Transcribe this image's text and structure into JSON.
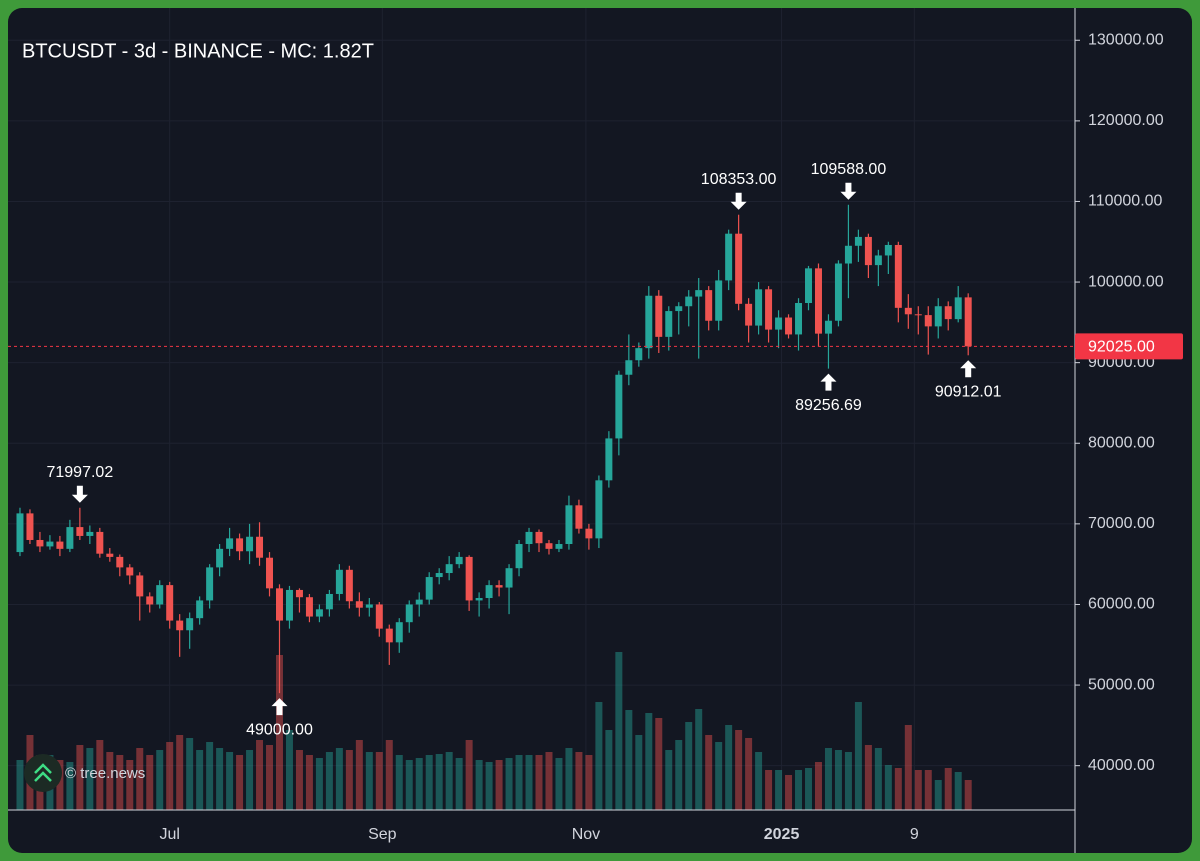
{
  "chart_data": {
    "type": "candlestick",
    "title": "BTCUSDT - 3d - BINANCE - MC: 1.82T",
    "watermark": "© tree.news",
    "up_color": "#26a69a",
    "down_color": "#ef5350",
    "open": [
      66500,
      71300,
      68000,
      67200,
      67800,
      66900,
      69600,
      68500,
      69000,
      66300,
      65900,
      64600,
      63600,
      61000,
      60000,
      62400,
      58000,
      56800,
      58300,
      60500,
      64600,
      66900,
      68200,
      66600,
      68400,
      65800,
      62000,
      58000,
      61800,
      60900,
      58500,
      59400,
      61300,
      64300,
      60400,
      59600,
      60000,
      57000,
      55300,
      57800,
      60000,
      60600,
      63400,
      63900,
      65000,
      65900,
      60500,
      60800,
      62400,
      62100,
      64500,
      67500,
      69000,
      67600,
      66900,
      67500,
      72300,
      69400,
      68200,
      75400,
      80600,
      88500,
      90300,
      91800,
      98300,
      93200,
      96400,
      97000,
      98200,
      99000,
      95200,
      100200,
      106000,
      97300,
      94600,
      99100,
      94100,
      95600,
      93500,
      97400,
      101700,
      93600,
      95200,
      102300,
      104500,
      105600,
      102100,
      103300,
      104600,
      96800,
      96000,
      95900,
      94500,
      97000,
      95400,
      98100
    ],
    "high": [
      72000,
      71800,
      69000,
      68600,
      68500,
      70500,
      71997.02,
      69800,
      69500,
      67000,
      66200,
      65000,
      64000,
      61500,
      63000,
      62800,
      58800,
      59000,
      61000,
      65000,
      67500,
      69500,
      68800,
      70000,
      70200,
      66500,
      62500,
      62300,
      62000,
      61300,
      60000,
      61800,
      65000,
      64800,
      61500,
      60800,
      60300,
      57500,
      58300,
      60500,
      61500,
      64000,
      64500,
      66000,
      66500,
      66100,
      61500,
      63000,
      63000,
      65000,
      68000,
      69500,
      69300,
      68000,
      68000,
      73500,
      73000,
      70000,
      76000,
      81500,
      89000,
      93500,
      92500,
      99500,
      99000,
      97000,
      97500,
      99000,
      100500,
      99500,
      101500,
      106500,
      108353,
      98000,
      100000,
      99500,
      96500,
      96000,
      98000,
      102000,
      102300,
      96000,
      102700,
      109588,
      106500,
      106000,
      104000,
      105000,
      105000,
      98500,
      97000,
      97000,
      98000,
      97600,
      99500,
      98600
    ],
    "low": [
      66000,
      67500,
      66500,
      66800,
      66000,
      66500,
      68000,
      67500,
      65800,
      65300,
      63500,
      62500,
      58000,
      59000,
      59500,
      57000,
      53500,
      54500,
      57500,
      59500,
      63500,
      66000,
      65500,
      65000,
      64800,
      61000,
      49000,
      57000,
      59000,
      57800,
      57800,
      58500,
      60500,
      59500,
      58500,
      58500,
      56000,
      52500,
      54000,
      56500,
      58500,
      60000,
      62500,
      63000,
      64500,
      59200,
      58500,
      59500,
      61000,
      58800,
      63500,
      66500,
      66500,
      66200,
      66500,
      66800,
      68800,
      66800,
      67000,
      74500,
      78500,
      87200,
      89500,
      90500,
      91200,
      91500,
      93500,
      94500,
      90500,
      94000,
      94000,
      99000,
      96500,
      92500,
      93500,
      92500,
      91800,
      93000,
      91500,
      96500,
      92000,
      89256.69,
      94500,
      98000,
      102500,
      100500,
      99500,
      101000,
      95000,
      94200,
      93500,
      91000,
      93000,
      94000,
      95000,
      90912.01
    ],
    "close": [
      71300,
      68000,
      67200,
      67800,
      66900,
      69600,
      68500,
      69000,
      66300,
      65900,
      64600,
      63600,
      61000,
      60000,
      62400,
      58000,
      56800,
      58300,
      60500,
      64600,
      66900,
      68200,
      66600,
      68400,
      65800,
      62000,
      58000,
      61800,
      60900,
      58500,
      59400,
      61300,
      64300,
      60400,
      59600,
      60000,
      57000,
      55300,
      57800,
      60000,
      60600,
      63400,
      63900,
      65000,
      65900,
      60500,
      60800,
      62400,
      62100,
      64500,
      67500,
      69000,
      67600,
      66900,
      67500,
      72300,
      69400,
      68200,
      75400,
      80600,
      88500,
      90300,
      91800,
      98300,
      93200,
      96400,
      97000,
      98200,
      99000,
      95200,
      100200,
      106000,
      97300,
      94600,
      99100,
      94100,
      95600,
      93500,
      97400,
      101700,
      93600,
      95200,
      102300,
      104500,
      105600,
      102100,
      103300,
      104600,
      96800,
      96000,
      95900,
      94500,
      97000,
      95400,
      98100,
      92025
    ],
    "volume": [
      50,
      75,
      55,
      55,
      50,
      48,
      65,
      62,
      70,
      58,
      55,
      50,
      62,
      55,
      60,
      68,
      75,
      72,
      60,
      68,
      62,
      58,
      55,
      60,
      70,
      65,
      155,
      80,
      60,
      55,
      52,
      58,
      62,
      60,
      70,
      58,
      58,
      70,
      55,
      50,
      52,
      55,
      56,
      58,
      52,
      70,
      50,
      48,
      50,
      52,
      55,
      55,
      55,
      58,
      52,
      62,
      58,
      55,
      108,
      80,
      158,
      100,
      75,
      97,
      92,
      60,
      70,
      88,
      101,
      75,
      68,
      85,
      80,
      72,
      58,
      40,
      40,
      35,
      40,
      42,
      48,
      62,
      60,
      58,
      108,
      65,
      62,
      45,
      42,
      85,
      40,
      40,
      30,
      42,
      38,
      30
    ],
    "vlim": [
      0,
      200
    ],
    "ylim": [
      34500,
      134000
    ],
    "yticks": [
      {
        "value": 40000,
        "label": "40000.00"
      },
      {
        "value": 50000,
        "label": "50000.00"
      },
      {
        "value": 60000,
        "label": "60000.00"
      },
      {
        "value": 70000,
        "label": "70000.00"
      },
      {
        "value": 80000,
        "label": "80000.00"
      },
      {
        "value": 90000,
        "label": "90000.00"
      },
      {
        "value": 100000,
        "label": "100000.00"
      },
      {
        "value": 110000,
        "label": "110000.00"
      },
      {
        "value": 120000,
        "label": "120000.00"
      },
      {
        "value": 130000,
        "label": "130000.00"
      }
    ],
    "xlim": [
      -1.2,
      105.7
    ],
    "xticks": [
      {
        "value": 15,
        "label": "Jul"
      },
      {
        "value": 36.3,
        "label": "Sep"
      },
      {
        "value": 56.7,
        "label": "Nov"
      },
      {
        "value": 76.3,
        "label": "2025"
      },
      {
        "value": 89.6,
        "label": "9"
      }
    ],
    "last_price": {
      "value": 92025,
      "label": "92025.00",
      "color": "#f23645"
    },
    "annotations": [
      {
        "kind": "high",
        "value": 71997.02,
        "label": "71997.02"
      },
      {
        "kind": "low",
        "value": 49000,
        "label": "49000.00"
      },
      {
        "kind": "high",
        "value": 108353,
        "label": "108353.00"
      },
      {
        "kind": "high",
        "value": 109588,
        "label": "109588.00"
      },
      {
        "kind": "low",
        "value": 89256.69,
        "label": "89256.69"
      },
      {
        "kind": "low",
        "value": 90912.01,
        "label": "90912.01"
      }
    ],
    "grid": true
  }
}
